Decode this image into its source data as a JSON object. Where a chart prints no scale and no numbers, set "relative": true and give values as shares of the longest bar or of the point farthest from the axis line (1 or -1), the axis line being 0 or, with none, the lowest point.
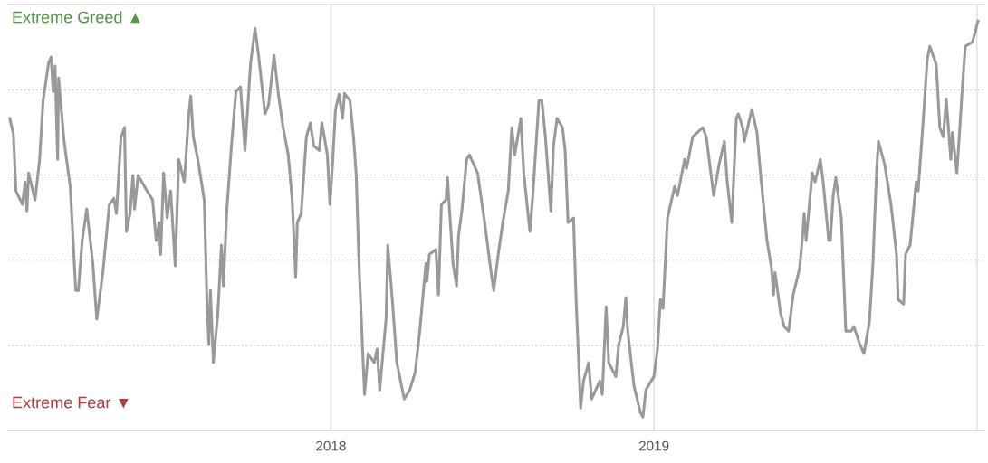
{
  "chart_data": {
    "type": "line",
    "relative": true,
    "tick_labels": "x",
    "grid": true,
    "legend": false,
    "marker": "none",
    "line_style": "solid",
    "annotations": [
      "Extreme Greed ▲",
      "Extreme Fear ▼"
    ],
    "xlim": [
      2017.0,
      2020.025
    ],
    "xticks": [
      2018,
      2019,
      {
        "value": 2020,
        "label": null
      }
    ],
    "series": [
      {
        "color": "#999999",
        "x": [
          2017.006,
          2017.017,
          2017.025,
          2017.045,
          2017.053,
          2017.059,
          2017.064,
          2017.084,
          2017.098,
          2017.109,
          2017.126,
          2017.134,
          2017.14,
          2017.146,
          2017.154,
          2017.157,
          2017.174,
          2017.193,
          2017.21,
          2017.218,
          2017.23,
          2017.244,
          2017.263,
          2017.275,
          2017.294,
          2017.314,
          2017.328,
          2017.336,
          2017.35,
          2017.361,
          2017.367,
          2017.378,
          2017.387,
          2017.392,
          2017.403,
          2017.431,
          2017.448,
          2017.459,
          2017.468,
          2017.473,
          2017.482,
          2017.493,
          2017.504,
          2017.518,
          2017.529,
          2017.546,
          2017.56,
          2017.566,
          2017.574,
          2017.588,
          2017.608,
          2017.616,
          2017.622,
          2017.627,
          2017.636,
          2017.65,
          2017.661,
          2017.667,
          2017.678,
          2017.692,
          2017.706,
          2017.72,
          2017.734,
          2017.751,
          2017.765,
          2017.776,
          2017.796,
          2017.807,
          2017.824,
          2017.838,
          2017.852,
          2017.868,
          2017.88,
          2017.891,
          2017.896,
          2017.908,
          2017.924,
          2017.936,
          2017.947,
          2017.964,
          2017.972,
          2017.989,
          2017.997,
          2018.006,
          2018.014,
          2018.025,
          2018.036,
          2018.042,
          2018.059,
          2018.07,
          2018.078,
          2018.087,
          2018.098,
          2018.104,
          2018.115,
          2018.134,
          2018.143,
          2018.151,
          2018.171,
          2018.176,
          2018.19,
          2018.204,
          2018.227,
          2018.244,
          2018.261,
          2018.275,
          2018.294,
          2018.297,
          2018.305,
          2018.325,
          2018.333,
          2018.342,
          2018.356,
          2018.361,
          2018.367,
          2018.378,
          2018.389,
          2018.395,
          2018.406,
          2018.42,
          2018.429,
          2018.454,
          2018.476,
          2018.496,
          2018.504,
          2018.518,
          2018.532,
          2018.549,
          2018.56,
          2018.569,
          2018.588,
          2018.597,
          2018.616,
          2018.625,
          2018.644,
          2018.653,
          2018.664,
          2018.681,
          2018.689,
          2018.7,
          2018.717,
          2018.725,
          2018.734,
          2018.751,
          2018.759,
          2018.773,
          2018.782,
          2018.798,
          2018.807,
          2018.832,
          2018.84,
          2018.852,
          2018.86,
          2018.882,
          2018.891,
          2018.905,
          2018.913,
          2018.919,
          2018.938,
          2018.958,
          2018.966,
          2018.975,
          2019.0,
          2019.011,
          2019.02,
          2019.028,
          2019.042,
          2019.064,
          2019.073,
          2019.095,
          2019.101,
          2019.12,
          2019.151,
          2019.162,
          2019.185,
          2019.202,
          2019.218,
          2019.227,
          2019.241,
          2019.255,
          2019.261,
          2019.275,
          2019.28,
          2019.303,
          2019.319,
          2019.331,
          2019.35,
          2019.364,
          2019.37,
          2019.375,
          2019.392,
          2019.403,
          2019.417,
          2019.431,
          2019.451,
          2019.459,
          2019.465,
          2019.471,
          2019.49,
          2019.499,
          2019.515,
          2019.524,
          2019.541,
          2019.546,
          2019.555,
          2019.563,
          2019.58,
          2019.594,
          2019.611,
          2019.619,
          2019.636,
          2019.65,
          2019.667,
          2019.678,
          2019.689,
          2019.695,
          2019.714,
          2019.734,
          2019.751,
          2019.756,
          2019.773,
          2019.779,
          2019.793,
          2019.812,
          2019.818,
          2019.835,
          2019.846,
          2019.854,
          2019.874,
          2019.885,
          2019.896,
          2019.905,
          2019.919,
          2019.924,
          2019.938,
          2019.955,
          2019.964,
          2019.986,
          2019.994,
          2020.003
        ],
        "values": [
          0.762,
          0.724,
          0.585,
          0.552,
          0.607,
          0.536,
          0.629,
          0.563,
          0.66,
          0.806,
          0.898,
          0.912,
          0.828,
          0.89,
          0.662,
          0.861,
          0.706,
          0.596,
          0.342,
          0.342,
          0.464,
          0.541,
          0.408,
          0.272,
          0.386,
          0.552,
          0.567,
          0.53,
          0.717,
          0.74,
          0.486,
          0.53,
          0.623,
          0.541,
          0.623,
          0.585,
          0.563,
          0.464,
          0.508,
          0.43,
          0.629,
          0.519,
          0.585,
          0.402,
          0.662,
          0.607,
          0.773,
          0.817,
          0.717,
          0.662,
          0.563,
          0.32,
          0.21,
          0.342,
          0.166,
          0.287,
          0.453,
          0.353,
          0.541,
          0.695,
          0.828,
          0.839,
          0.684,
          0.894,
          0.982,
          0.916,
          0.773,
          0.795,
          0.916,
          0.817,
          0.74,
          0.673,
          0.563,
          0.375,
          0.508,
          0.53,
          0.717,
          0.751,
          0.695,
          0.684,
          0.751,
          0.673,
          0.552,
          0.662,
          0.784,
          0.821,
          0.762,
          0.823,
          0.806,
          0.717,
          0.629,
          0.408,
          0.199,
          0.088,
          0.188,
          0.166,
          0.199,
          0.099,
          0.276,
          0.453,
          0.32,
          0.166,
          0.077,
          0.099,
          0.143,
          0.243,
          0.408,
          0.364,
          0.43,
          0.442,
          0.331,
          0.552,
          0.563,
          0.618,
          0.541,
          0.408,
          0.353,
          0.475,
          0.541,
          0.662,
          0.673,
          0.629,
          0.508,
          0.386,
          0.342,
          0.43,
          0.508,
          0.585,
          0.74,
          0.673,
          0.762,
          0.629,
          0.486,
          0.574,
          0.806,
          0.806,
          0.717,
          0.536,
          0.695,
          0.762,
          0.74,
          0.684,
          0.508,
          0.519,
          0.32,
          0.055,
          0.121,
          0.166,
          0.077,
          0.121,
          0.088,
          0.302,
          0.166,
          0.132,
          0.21,
          0.254,
          0.325,
          0.243,
          0.11,
          0.044,
          0.033,
          0.099,
          0.132,
          0.199,
          0.32,
          0.298,
          0.519,
          0.596,
          0.574,
          0.662,
          0.64,
          0.717,
          0.74,
          0.717,
          0.574,
          0.651,
          0.706,
          0.607,
          0.508,
          0.762,
          0.773,
          0.74,
          0.706,
          0.784,
          0.728,
          0.618,
          0.464,
          0.397,
          0.331,
          0.386,
          0.287,
          0.254,
          0.243,
          0.331,
          0.397,
          0.464,
          0.53,
          0.464,
          0.629,
          0.607,
          0.662,
          0.607,
          0.464,
          0.464,
          0.574,
          0.618,
          0.519,
          0.243,
          0.243,
          0.254,
          0.214,
          0.188,
          0.265,
          0.408,
          0.629,
          0.706,
          0.651,
          0.552,
          0.43,
          0.32,
          0.309,
          0.43,
          0.453,
          0.607,
          0.585,
          0.773,
          0.905,
          0.938,
          0.894,
          0.74,
          0.717,
          0.81,
          0.662,
          0.728,
          0.629,
          0.839,
          0.938,
          0.949,
          0.971,
          1.0
        ]
      }
    ]
  }
}
